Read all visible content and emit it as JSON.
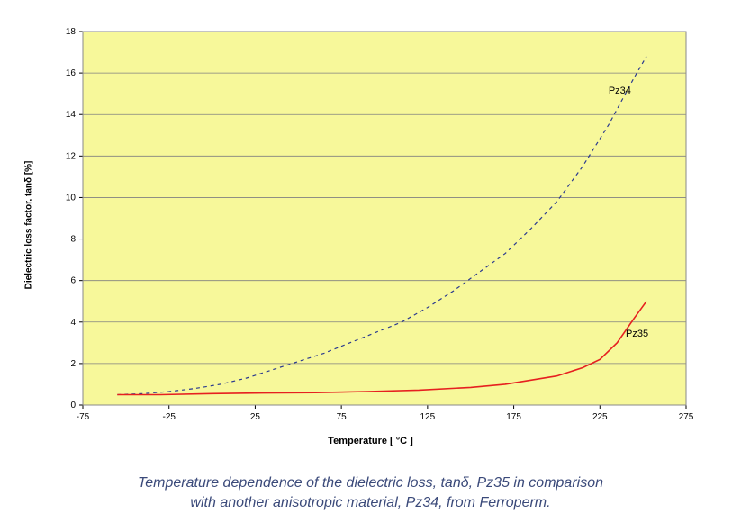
{
  "chart": {
    "type": "line",
    "background_color": "#f7f89a",
    "border_color": "#8a8a8a",
    "grid_color": "#808080",
    "axis_color": "#000000",
    "xlabel": "Temperature [ °C ]",
    "ylabel": "Dielectric loss factor, tanδ [%]",
    "label_fontsize": 11,
    "tick_fontsize": 10,
    "xlim": [
      -75,
      275
    ],
    "ylim": [
      0,
      18
    ],
    "xtick_step": 50,
    "ytick_step": 2,
    "xticks": [
      "-75",
      "-25",
      "25",
      "75",
      "125",
      "175",
      "225",
      "275"
    ],
    "yticks": [
      "0",
      "2",
      "4",
      "6",
      "8",
      "10",
      "12",
      "14",
      "16",
      "18"
    ],
    "series": [
      {
        "name": "Pz34",
        "label": "Pz34",
        "label_x": 230,
        "label_y": 15,
        "color": "#2b3a8f",
        "style": "dashed",
        "line_width": 1.2,
        "points": [
          [
            -55,
            0.5
          ],
          [
            -40,
            0.55
          ],
          [
            -25,
            0.65
          ],
          [
            -10,
            0.8
          ],
          [
            5,
            1.0
          ],
          [
            20,
            1.3
          ],
          [
            35,
            1.7
          ],
          [
            50,
            2.1
          ],
          [
            65,
            2.5
          ],
          [
            80,
            3.0
          ],
          [
            95,
            3.5
          ],
          [
            110,
            4.0
          ],
          [
            125,
            4.7
          ],
          [
            140,
            5.5
          ],
          [
            155,
            6.4
          ],
          [
            170,
            7.3
          ],
          [
            185,
            8.5
          ],
          [
            200,
            9.8
          ],
          [
            215,
            11.5
          ],
          [
            230,
            13.5
          ],
          [
            245,
            15.8
          ],
          [
            252,
            16.8
          ]
        ]
      },
      {
        "name": "Pz35",
        "label": "Pz35",
        "label_x": 240,
        "label_y": 3.3,
        "color": "#e62020",
        "style": "solid",
        "line_width": 1.6,
        "points": [
          [
            -55,
            0.5
          ],
          [
            -30,
            0.5
          ],
          [
            0,
            0.55
          ],
          [
            30,
            0.58
          ],
          [
            60,
            0.6
          ],
          [
            90,
            0.65
          ],
          [
            120,
            0.72
          ],
          [
            150,
            0.85
          ],
          [
            170,
            1.0
          ],
          [
            185,
            1.2
          ],
          [
            200,
            1.4
          ],
          [
            215,
            1.8
          ],
          [
            225,
            2.2
          ],
          [
            235,
            3.0
          ],
          [
            245,
            4.2
          ],
          [
            252,
            5.0
          ]
        ]
      }
    ]
  },
  "caption": {
    "line1": "Temperature dependence of the dielectric loss, tanδ, Pz35 in comparison",
    "line2": "with another anisotropic material, Pz34, from Ferroperm."
  }
}
